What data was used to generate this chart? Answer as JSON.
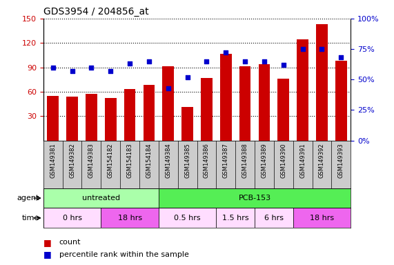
{
  "title": "GDS3954 / 204856_at",
  "samples": [
    "GSM149381",
    "GSM149382",
    "GSM149383",
    "GSM154182",
    "GSM154183",
    "GSM154184",
    "GSM149384",
    "GSM149385",
    "GSM149386",
    "GSM149387",
    "GSM149388",
    "GSM149389",
    "GSM149390",
    "GSM149391",
    "GSM149392",
    "GSM149393"
  ],
  "bar_values": [
    55,
    54,
    57,
    52,
    63,
    68,
    91,
    41,
    77,
    107,
    91,
    94,
    76,
    124,
    143,
    98
  ],
  "dot_values_pct": [
    60,
    57,
    60,
    57,
    63,
    65,
    43,
    52,
    65,
    72,
    65,
    65,
    62,
    75,
    75,
    68
  ],
  "bar_color": "#cc0000",
  "dot_color": "#0000cc",
  "ylim_left": [
    0,
    150
  ],
  "ylim_right": [
    0,
    100
  ],
  "yticks_left": [
    30,
    60,
    90,
    120,
    150
  ],
  "ytick_labels_left": [
    "30",
    "60",
    "90",
    "120",
    "150"
  ],
  "yticks_right": [
    0,
    25,
    50,
    75,
    100
  ],
  "ytick_labels_right": [
    "0%",
    "25%",
    "50%",
    "75%",
    "100%"
  ],
  "agent_groups": [
    {
      "label": "untreated",
      "start": 0,
      "end": 6,
      "color": "#aaffaa"
    },
    {
      "label": "PCB-153",
      "start": 6,
      "end": 16,
      "color": "#55ee55"
    }
  ],
  "time_groups": [
    {
      "label": "0 hrs",
      "start": 0,
      "end": 3,
      "color": "#ffddff"
    },
    {
      "label": "18 hrs",
      "start": 3,
      "end": 6,
      "color": "#ee66ee"
    },
    {
      "label": "0.5 hrs",
      "start": 6,
      "end": 9,
      "color": "#ffddff"
    },
    {
      "label": "1.5 hrs",
      "start": 9,
      "end": 11,
      "color": "#ffddff"
    },
    {
      "label": "6 hrs",
      "start": 11,
      "end": 13,
      "color": "#ffddff"
    },
    {
      "label": "18 hrs",
      "start": 13,
      "end": 16,
      "color": "#ee66ee"
    }
  ],
  "xlabel_color": "#cc0000",
  "ylabel_right_color": "#0000cc",
  "xtick_bg_color": "#cccccc",
  "plot_bg_color": "#ffffff"
}
